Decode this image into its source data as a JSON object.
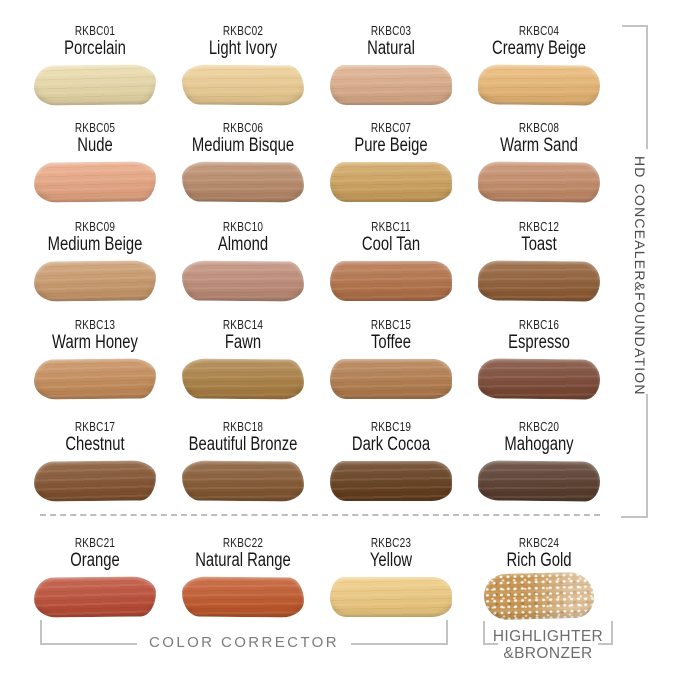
{
  "sections": {
    "right_bracket_label": "HD CONCEALER&FOUNDATION",
    "color_corrector_label": "COLOR CORRECTOR",
    "highlighter_label_line1": "HIGHLIGHTER",
    "highlighter_label_line2": "&BRONZER"
  },
  "colors": {
    "background": "#FFFFFF",
    "bracket_line": "#C3C3C3",
    "divider_dash": "#BDBDBD",
    "shade_label_text": "#1C1C1C",
    "section_text_gray": "#707070",
    "vertical_label_text": "#4B4B4B"
  },
  "chart_data": {
    "type": "table",
    "columns": [
      "code",
      "shade_name",
      "hex_color",
      "group"
    ],
    "layout": {
      "grid_columns": 4,
      "grid_rows": 6,
      "legend_position": "right-and-bottom brackets",
      "grid": false
    },
    "groups": [
      "HD CONCEALER&FOUNDATION",
      "COLOR CORRECTOR",
      "HIGHLIGHTER &BRONZER"
    ],
    "rows": [
      [
        "RKBC01",
        "Porcelain",
        "#EDDDAC",
        "HD CONCEALER&FOUNDATION"
      ],
      [
        "RKBC02",
        "Light Ivory",
        "#F0D095",
        "HD CONCEALER&FOUNDATION"
      ],
      [
        "RKBC03",
        "Natural",
        "#DFAF8C",
        "HD CONCEALER&FOUNDATION"
      ],
      [
        "RKBC04",
        "Creamy Beige",
        "#ECBA76",
        "HD CONCEALER&FOUNDATION"
      ],
      [
        "RKBC05",
        "Nude",
        "#ECA985",
        "HD CONCEALER&FOUNDATION"
      ],
      [
        "RKBC06",
        "Medium Bisque",
        "#BC8D6C",
        "HD CONCEALER&FOUNDATION"
      ],
      [
        "RKBC07",
        "Pure Beige",
        "#D2A55F",
        "HD CONCEALER&FOUNDATION"
      ],
      [
        "RKBC08",
        "Warm Sand",
        "#C78E6B",
        "HD CONCEALER&FOUNDATION"
      ],
      [
        "RKBC09",
        "Medium Beige",
        "#CD9C6E",
        "HD CONCEALER&FOUNDATION"
      ],
      [
        "RKBC10",
        "Almond",
        "#C28F7A",
        "HD CONCEALER&FOUNDATION"
      ],
      [
        "RKBC11",
        "Cool Tan",
        "#B7744B",
        "HD CONCEALER&FOUNDATION"
      ],
      [
        "RKBC12",
        "Toast",
        "#936037",
        "HD CONCEALER&FOUNDATION"
      ],
      [
        "RKBC13",
        "Warm Honey",
        "#C98F5C",
        "HD CONCEALER&FOUNDATION"
      ],
      [
        "RKBC14",
        "Fawn",
        "#AE8245",
        "HD CONCEALER&FOUNDATION"
      ],
      [
        "RKBC15",
        "Toffee",
        "#B67F4F",
        "HD CONCEALER&FOUNDATION"
      ],
      [
        "RKBC16",
        "Espresso",
        "#7F4B37",
        "HD CONCEALER&FOUNDATION"
      ],
      [
        "RKBC17",
        "Chestnut",
        "#855430",
        "HD CONCEALER&FOUNDATION"
      ],
      [
        "RKBC18",
        "Beautiful Bronze",
        "#875A33",
        "HD CONCEALER&FOUNDATION"
      ],
      [
        "RKBC19",
        "Dark Cocoa",
        "#68401F",
        "HD CONCEALER&FOUNDATION"
      ],
      [
        "RKBC20",
        "Mahogany",
        "#5C3F2F",
        "HD CONCEALER&FOUNDATION"
      ],
      [
        "RKBC21",
        "Orange",
        "#BF4F38",
        "COLOR CORRECTOR"
      ],
      [
        "RKBC22",
        "Natural Range",
        "#C55A2D",
        "COLOR CORRECTOR"
      ],
      [
        "RKBC23",
        "Yellow",
        "#F2CD82",
        "COLOR CORRECTOR"
      ],
      [
        "RKBC24",
        "Rich Gold",
        "#C69554",
        "HIGHLIGHTER &BRONZER"
      ]
    ]
  }
}
